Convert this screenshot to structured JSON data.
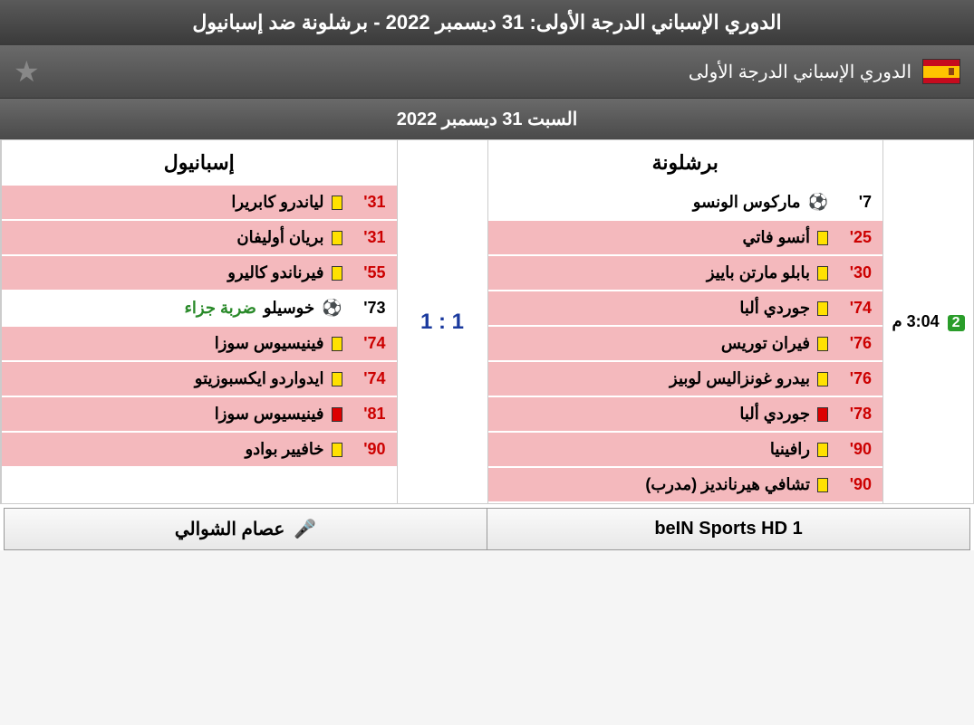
{
  "header": {
    "main_title": "الدوري الإسباني الدرجة الأولى: 31 ديسمبر 2022 - برشلونة ضد إسبانيول",
    "league_name": "الدوري الإسباني الدرجة الأولى",
    "date": "السبت 31 ديسمبر 2022"
  },
  "match": {
    "time": "3:04 م",
    "half": "2",
    "score": "1 : 1",
    "home_team": "برشلونة",
    "away_team": "إسبانيول"
  },
  "home_events": [
    {
      "minute": "7'",
      "type": "goal",
      "player": "ماركوس الونسو",
      "extra": ""
    },
    {
      "minute": "25'",
      "type": "yellow",
      "player": "أنسو فاتي",
      "extra": ""
    },
    {
      "minute": "30'",
      "type": "yellow",
      "player": "بابلو مارتن باييز",
      "extra": ""
    },
    {
      "minute": "74'",
      "type": "yellow",
      "player": "جوردي ألبا",
      "extra": ""
    },
    {
      "minute": "76'",
      "type": "yellow",
      "player": "فيران توريس",
      "extra": ""
    },
    {
      "minute": "76'",
      "type": "yellow",
      "player": "بيدرو غونزاليس لوبيز",
      "extra": ""
    },
    {
      "minute": "78'",
      "type": "red",
      "player": "جوردي ألبا",
      "extra": ""
    },
    {
      "minute": "90'",
      "type": "yellow",
      "player": "رافينيا",
      "extra": ""
    },
    {
      "minute": "90'",
      "type": "yellow",
      "player": "تشافي هيرنانديز (مدرب)",
      "extra": ""
    }
  ],
  "away_events": [
    {
      "minute": "31'",
      "type": "yellow",
      "player": "لياندرو كابريرا",
      "extra": ""
    },
    {
      "minute": "31'",
      "type": "yellow",
      "player": "بريان أوليفان",
      "extra": ""
    },
    {
      "minute": "55'",
      "type": "yellow",
      "player": "فيرناندو كاليرو",
      "extra": ""
    },
    {
      "minute": "73'",
      "type": "goal",
      "player": "خوسيلو",
      "extra": "ضربة جزاء"
    },
    {
      "minute": "74'",
      "type": "yellow",
      "player": "فينيسيوس سوزا",
      "extra": ""
    },
    {
      "minute": "74'",
      "type": "yellow",
      "player": "ايدواردو ايكسبوزيتو",
      "extra": ""
    },
    {
      "minute": "81'",
      "type": "red",
      "player": "فينيسيوس سوزا",
      "extra": ""
    },
    {
      "minute": "90'",
      "type": "yellow",
      "player": "خافيير بوادو",
      "extra": ""
    }
  ],
  "footer": {
    "channel": "beIN Sports HD 1",
    "commentator": "عصام الشوالي"
  }
}
